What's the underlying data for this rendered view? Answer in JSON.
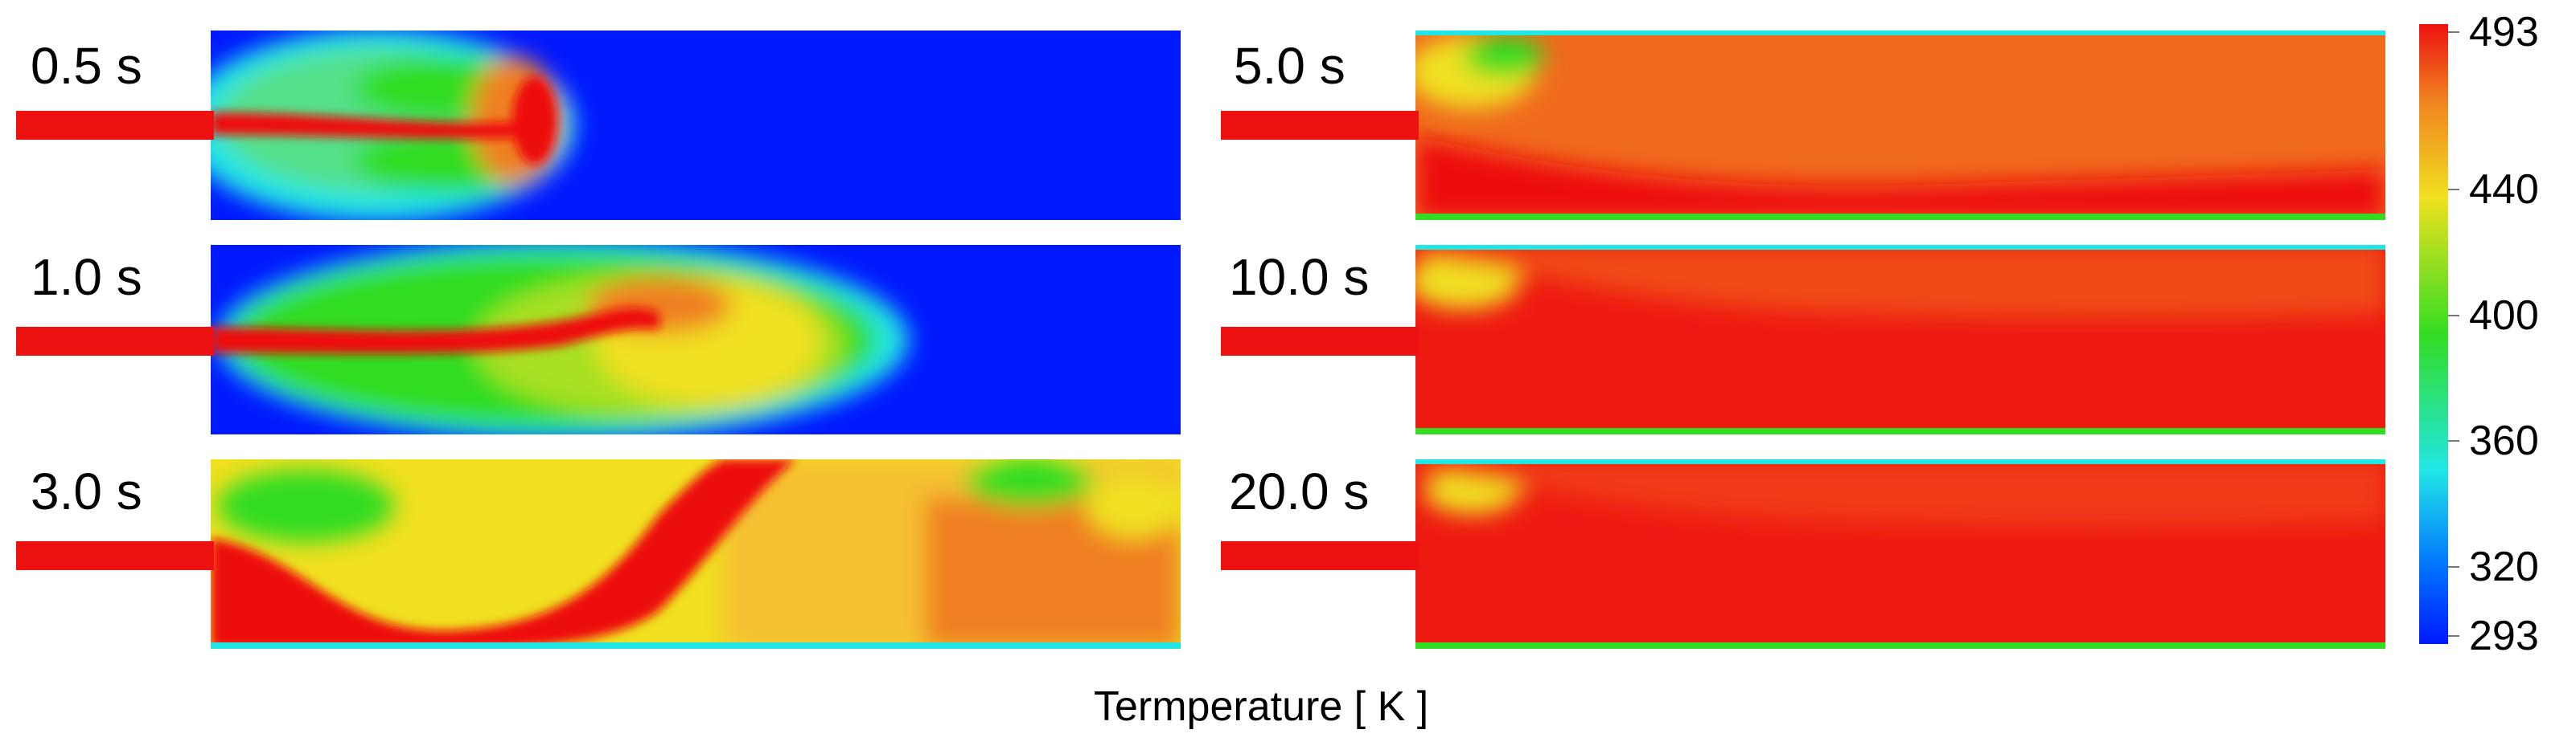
{
  "panels": [
    {
      "time": "0.5 s"
    },
    {
      "time": "1.0 s"
    },
    {
      "time": "3.0 s"
    },
    {
      "time": "5.0 s"
    },
    {
      "time": "10.0 s"
    },
    {
      "time": "20.0 s"
    }
  ],
  "colorbar": {
    "ticks": [
      "493",
      "440",
      "400",
      "360",
      "320",
      "293"
    ]
  },
  "caption": "Termperature [ K ]",
  "colors": {
    "cold": "#0019ff",
    "cyan": "#22e6e6",
    "green": "#33dd22",
    "yellow": "#f0e020",
    "orange": "#f08020",
    "hot": "#ee1111"
  }
}
